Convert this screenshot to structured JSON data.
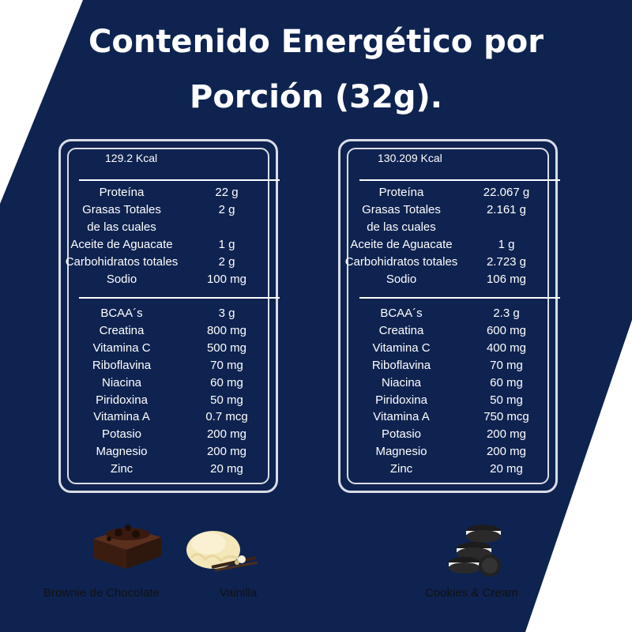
{
  "title": {
    "line1": "Contenido Energético por",
    "line2": "Porción (32g)."
  },
  "panels": [
    {
      "kcal": "129.2 Kcal",
      "macros": [
        {
          "name": "Proteína",
          "value": "22 g"
        },
        {
          "name": "Grasas Totales",
          "value": "2 g"
        },
        {
          "name": "de las cuales",
          "value": ""
        },
        {
          "name": "Aceite de Aguacate",
          "value": "1 g"
        },
        {
          "name": "Carbohidratos totales",
          "value": "2 g"
        },
        {
          "name": "Sodio",
          "value": "100 mg"
        }
      ],
      "micros": [
        {
          "name": "BCAA´s",
          "value": "3 g"
        },
        {
          "name": "Creatina",
          "value": "800 mg"
        },
        {
          "name": "Vitamina C",
          "value": "500 mg"
        },
        {
          "name": "Riboflavina",
          "value": "70 mg"
        },
        {
          "name": "Niacina",
          "value": "60 mg"
        },
        {
          "name": "Piridoxina",
          "value": "50 mg"
        },
        {
          "name": "Vitamina A",
          "value": "0.7 mcg"
        },
        {
          "name": "Potasio",
          "value": "200 mg"
        },
        {
          "name": "Magnesio",
          "value": "200 mg"
        },
        {
          "name": "Zinc",
          "value": "20 mg"
        }
      ]
    },
    {
      "kcal": "130.209 Kcal",
      "macros": [
        {
          "name": "Proteína",
          "value": "22.067 g"
        },
        {
          "name": "Grasas Totales",
          "value": "2.161 g"
        },
        {
          "name": "de las cuales",
          "value": ""
        },
        {
          "name": "Aceite de Aguacate",
          "value": "1 g"
        },
        {
          "name": "Carbohidratos totales",
          "value": "2.723 g"
        },
        {
          "name": "Sodio",
          "value": "106 mg"
        }
      ],
      "micros": [
        {
          "name": "BCAA´s",
          "value": "2.3 g"
        },
        {
          "name": "Creatina",
          "value": "600 mg"
        },
        {
          "name": "Vitamina C",
          "value": "400 mg"
        },
        {
          "name": "Riboflavina",
          "value": "70 mg"
        },
        {
          "name": "Niacina",
          "value": "60 mg"
        },
        {
          "name": "Piridoxina",
          "value": "50 mg"
        },
        {
          "name": "Vitamina A",
          "value": "750 mcg"
        },
        {
          "name": "Potasio",
          "value": "200 mg"
        },
        {
          "name": "Magnesio",
          "value": "200 mg"
        },
        {
          "name": "Zinc",
          "value": "20 mg"
        }
      ]
    }
  ],
  "flavors": {
    "brownie": {
      "label": "Brownie de Chocolate",
      "icon": "brownie-icon"
    },
    "vainilla": {
      "label": "Vainilla",
      "icon": "ice-cream-icon"
    },
    "cookies": {
      "label": "Cookies & Cream",
      "icon": "cookies-icon"
    }
  },
  "colors": {
    "navy": "#0e2350",
    "text_light": "#ffffff",
    "text_dark": "#111111",
    "border": "#d9dde6"
  }
}
